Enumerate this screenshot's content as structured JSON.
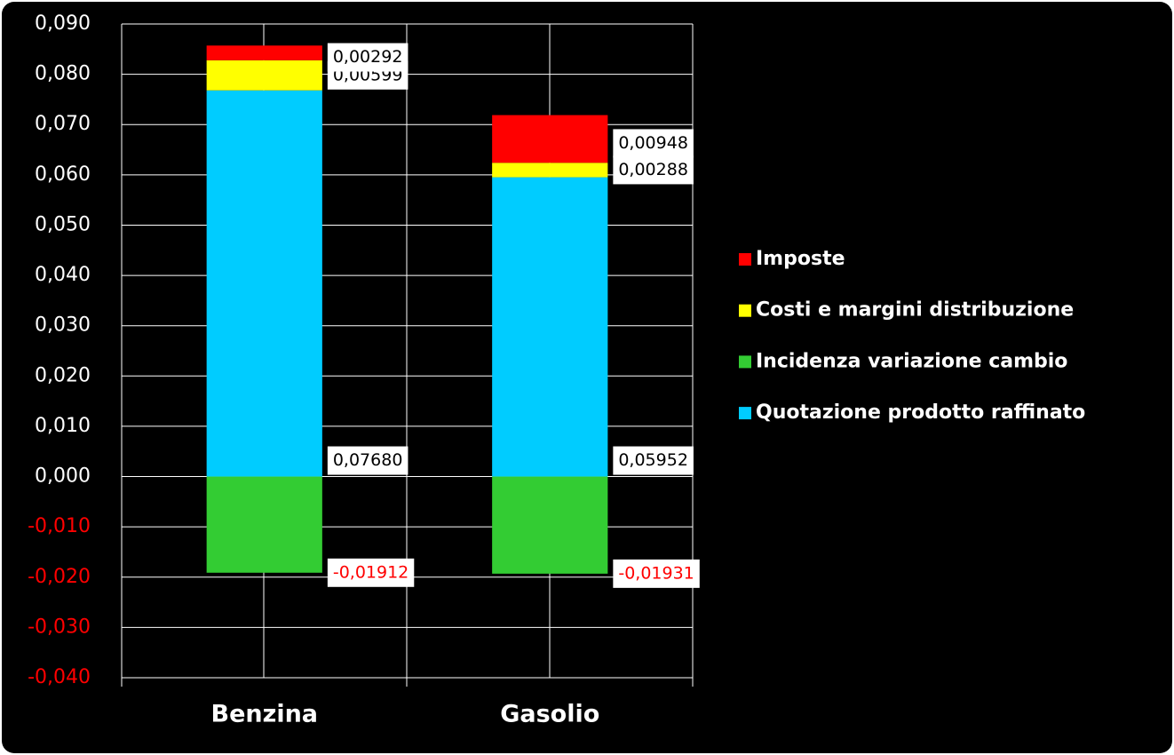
{
  "chart_data": {
    "type": "stacked-bar",
    "categories": [
      "Benzina",
      "Gasolio"
    ],
    "series": [
      {
        "name": "Quotazione prodotto raffinato",
        "color": "#00ccff",
        "values": [
          0.0768,
          0.05952
        ],
        "value_labels": [
          "0,07680",
          "0,05952"
        ]
      },
      {
        "name": "Costi e margini distribuzione",
        "color": "#ffff00",
        "values": [
          0.00599,
          0.00288
        ],
        "value_labels": [
          "0,00599",
          "0,00288"
        ]
      },
      {
        "name": "Imposte",
        "color": "#ff0000",
        "values": [
          0.00292,
          0.00948
        ],
        "value_labels": [
          "0,00292",
          "0,00948"
        ]
      },
      {
        "name": "Incidenza variazione cambio",
        "color": "#33cc33",
        "values": [
          -0.01912,
          -0.01931
        ],
        "value_labels": [
          "-0,01912",
          "-0,01931"
        ]
      }
    ],
    "legend_order": [
      "Imposte",
      "Costi e margini distribuzione",
      "Incidenza variazione cambio",
      "Quotazione prodotto raffinato"
    ],
    "ylim": [
      -0.04,
      0.09
    ],
    "yticks": [
      {
        "value": -0.04,
        "label": "-0,040"
      },
      {
        "value": -0.03,
        "label": "-0,030"
      },
      {
        "value": -0.02,
        "label": "-0,020"
      },
      {
        "value": -0.01,
        "label": "-0,010"
      },
      {
        "value": 0,
        "label": "0,000"
      },
      {
        "value": 0.01,
        "label": "0,010"
      },
      {
        "value": 0.02,
        "label": "0,020"
      },
      {
        "value": 0.03,
        "label": "0,030"
      },
      {
        "value": 0.04,
        "label": "0,040"
      },
      {
        "value": 0.05,
        "label": "0,050"
      },
      {
        "value": 0.06,
        "label": "0,060"
      },
      {
        "value": 0.07,
        "label": "0,070"
      },
      {
        "value": 0.08,
        "label": "0,080"
      },
      {
        "value": 0.09,
        "label": "0,090"
      }
    ],
    "grid": true,
    "negative_color": "#ff0000",
    "legend_position": "right"
  }
}
